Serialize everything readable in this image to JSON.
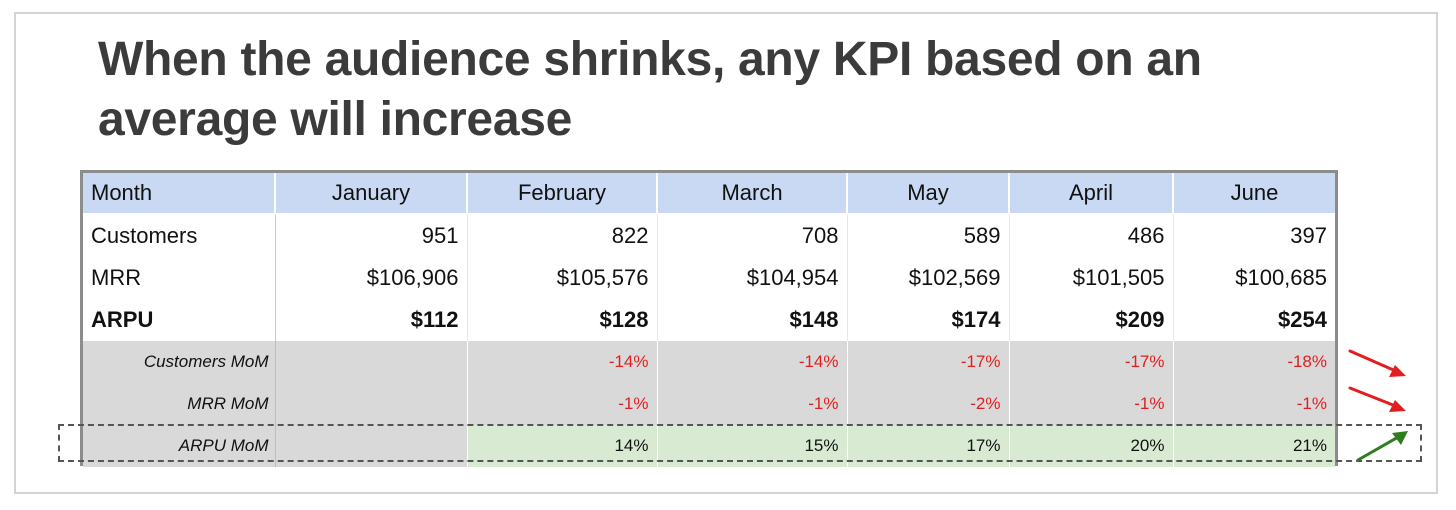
{
  "title": "When the audience shrinks, any KPI based on an average will increase",
  "table": {
    "headers": [
      "Month",
      "January",
      "February",
      "March",
      "May",
      "April",
      "June"
    ],
    "rows": [
      {
        "label": "Customers",
        "values": [
          "951",
          "822",
          "708",
          "589",
          "486",
          "397"
        ]
      },
      {
        "label": "MRR",
        "values": [
          "$106,906",
          "$105,576",
          "$104,954",
          "$102,569",
          "$101,505",
          "$100,685"
        ]
      },
      {
        "label": "ARPU",
        "values": [
          "$112",
          "$128",
          "$148",
          "$174",
          "$209",
          "$254"
        ]
      }
    ],
    "mom_rows": [
      {
        "label": "Customers MoM",
        "values": [
          "",
          "-14%",
          "-14%",
          "-17%",
          "-17%",
          "-18%"
        ]
      },
      {
        "label": "MRR MoM",
        "values": [
          "",
          "-1%",
          "-1%",
          "-2%",
          "-1%",
          "-1%"
        ]
      },
      {
        "label": "ARPU MoM",
        "values": [
          "",
          "14%",
          "15%",
          "17%",
          "20%",
          "21%"
        ]
      }
    ]
  },
  "colors": {
    "header_bg": "#c9d9f3",
    "mom_bg": "#d9d9d9",
    "positive_bg": "#d9ead3",
    "negative_text": "#e02020",
    "down_arrow": "#e02020",
    "up_arrow": "#2e7d1f"
  },
  "arrows": [
    {
      "row": "Customers MoM",
      "direction": "down",
      "icon": "red-down-arrow-icon"
    },
    {
      "row": "MRR MoM",
      "direction": "down",
      "icon": "red-down-arrow-icon"
    },
    {
      "row": "ARPU MoM",
      "direction": "up",
      "icon": "green-up-arrow-icon"
    }
  ]
}
